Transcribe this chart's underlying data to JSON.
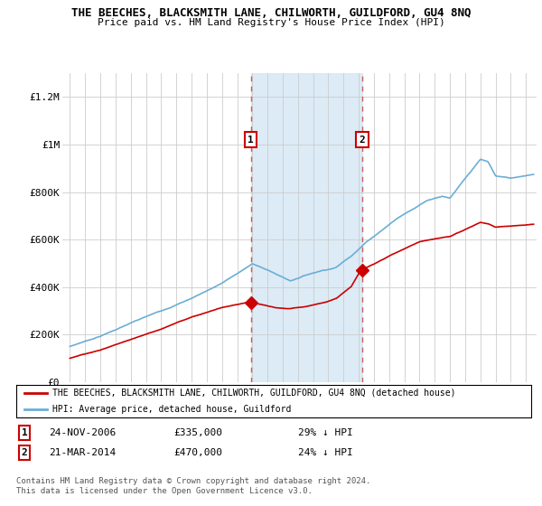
{
  "title": "THE BEECHES, BLACKSMITH LANE, CHILWORTH, GUILDFORD, GU4 8NQ",
  "subtitle": "Price paid vs. HM Land Registry's House Price Index (HPI)",
  "legend_line1": "THE BEECHES, BLACKSMITH LANE, CHILWORTH, GUILDFORD, GU4 8NQ (detached house)",
  "legend_line2": "HPI: Average price, detached house, Guildford",
  "footnote1": "Contains HM Land Registry data © Crown copyright and database right 2024.",
  "footnote2": "This data is licensed under the Open Government Licence v3.0.",
  "sale1_date": "24-NOV-2006",
  "sale1_price": "£335,000",
  "sale1_hpi": "29% ↓ HPI",
  "sale2_date": "21-MAR-2014",
  "sale2_price": "£470,000",
  "sale2_hpi": "24% ↓ HPI",
  "hpi_color": "#6baed6",
  "price_color": "#cc0000",
  "shade_color": "#d6e8f5",
  "ylim": [
    0,
    1300000
  ],
  "yticks": [
    0,
    200000,
    400000,
    600000,
    800000,
    1000000,
    1200000
  ],
  "ytick_labels": [
    "£0",
    "£200K",
    "£400K",
    "£600K",
    "£800K",
    "£1M",
    "£1.2M"
  ],
  "sale1_x": 2006.9,
  "sale2_x": 2014.22,
  "sale1_y": 335000,
  "sale2_y": 470000,
  "vline1_x": 2006.9,
  "vline2_x": 2014.22,
  "xlim_left": 1994.5,
  "xlim_right": 2025.7
}
